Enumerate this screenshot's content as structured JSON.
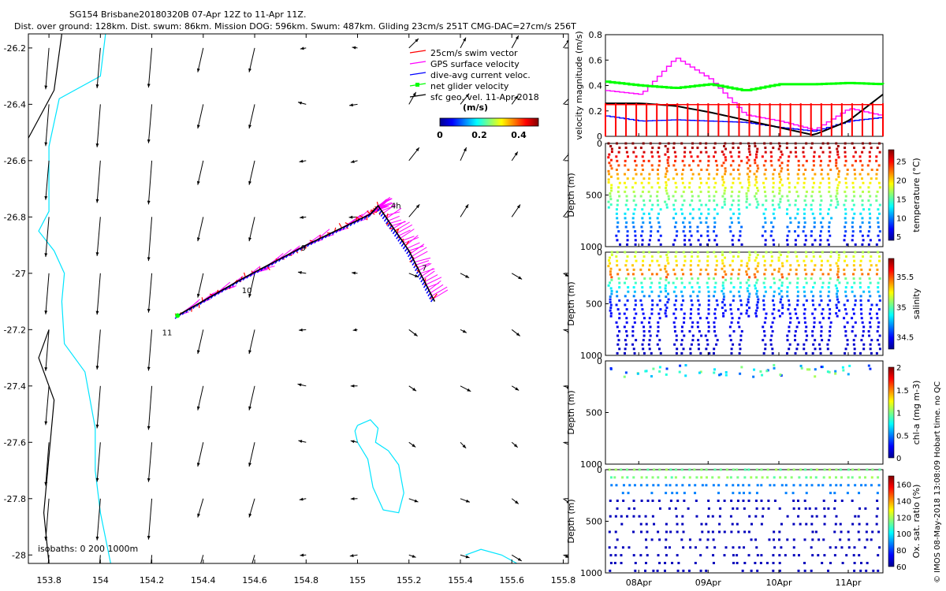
{
  "header": {
    "line1": "SG154 Brisbane20180320B 07-Apr 12Z to 11-Apr 11Z.",
    "line2": "Dist. over ground: 128km. Dist. swum: 86km. Mission DOG: 596km. Swum: 487km. Gliding 23cm/s 251T CMG-DAC=27cm/s 256T"
  },
  "credit": "© IMOS 08-May-2018 13:08:09 Hobart time. no QC",
  "colors": {
    "swim": "#ff0000",
    "gps": "#ff00ff",
    "dac": "#0000ff",
    "net": "#00ff00",
    "sfc": "#000000",
    "isobath200": "#00e5ff",
    "isobath1000": "#000000"
  },
  "map": {
    "x_ticks": [
      "153.8",
      "154",
      "154.2",
      "154.4",
      "154.6",
      "154.8",
      "155",
      "155.2",
      "155.4",
      "155.6",
      "155.8"
    ],
    "y_ticks": [
      "-26.2",
      "-26.4",
      "-26.6",
      "-26.8",
      "-27",
      "-27.2",
      "-27.4",
      "-27.6",
      "-27.8",
      "-28"
    ],
    "xlim": [
      153.72,
      155.82
    ],
    "ylim": [
      -28.03,
      -26.15
    ],
    "day_labels": [
      "4h",
      "7",
      "9",
      "10",
      "11"
    ],
    "isobath_label": "isobaths: 0   200   1000m",
    "legend": [
      "25cm/s swim vector",
      "GPS surface velocity",
      "dive-avg current veloc.",
      "net glider velocity",
      "sfc geo. vel. 11-Apr-2018"
    ],
    "colorbar": {
      "label": "(m/s)",
      "ticks": [
        "0",
        "0.2",
        "0.4"
      ],
      "range": [
        0,
        0.5
      ]
    }
  },
  "panels": {
    "date_ticks": [
      "08Apr",
      "09Apr",
      "10Apr",
      "11Apr"
    ],
    "velocity": {
      "ylabel": "velocity magnitude (m/s)",
      "ticks": [
        "0",
        "0.2",
        "0.4",
        "0.6",
        "0.8"
      ],
      "ylim": [
        0,
        0.8
      ]
    },
    "temperature": {
      "ylabel": "Depth (m)",
      "cblabel": "temperature (°C)",
      "yticks": [
        "0",
        "500",
        "1000"
      ],
      "cbticks": [
        "5",
        "10",
        "15",
        "20",
        "25"
      ],
      "cbrange": [
        4,
        28
      ]
    },
    "salinity": {
      "ylabel": "Depth (m)",
      "cblabel": "salinity",
      "yticks": [
        "0",
        "500",
        "1000"
      ],
      "cbticks": [
        "34.5",
        "35",
        "35.5"
      ],
      "cbrange": [
        34.3,
        35.8
      ]
    },
    "chla": {
      "ylabel": "Depth (m)",
      "cblabel": "chl-a (mg m-3)",
      "yticks": [
        "0",
        "500",
        "1000"
      ],
      "cbticks": [
        "0",
        "0.5",
        "1",
        "1.5",
        "2"
      ],
      "cbrange": [
        0,
        2
      ]
    },
    "oxygen": {
      "ylabel": "Depth (m)",
      "cblabel": "Ox. sat. ratio (%)",
      "yticks": [
        "0",
        "500",
        "1000"
      ],
      "cbticks": [
        "60",
        "80",
        "100",
        "120",
        "140",
        "160"
      ],
      "cbrange": [
        60,
        170
      ]
    }
  },
  "chart_data": [
    {
      "type": "scatter",
      "title": "SG154 Brisbane20180320B 07-Apr 12Z to 11-Apr 11Z.",
      "xlim": [
        153.72,
        155.82
      ],
      "ylim": [
        -28.03,
        -26.15
      ],
      "series": [
        {
          "name": "glider track",
          "x": [
            154.3,
            154.55,
            154.8,
            155.05,
            155.08,
            155.2,
            155.3
          ],
          "y": [
            -27.15,
            -27.02,
            -26.9,
            -26.79,
            -26.76,
            -26.92,
            -27.1
          ]
        }
      ],
      "annotations": [
        "4h",
        "7",
        "9",
        "10",
        "11"
      ]
    },
    {
      "type": "line",
      "ylabel": "velocity magnitude (m/s)",
      "ylim": [
        0,
        0.8
      ],
      "x": [
        "07Apr12",
        "08Apr00",
        "08Apr12",
        "09Apr00",
        "09Apr12",
        "10Apr00",
        "10Apr12",
        "11Apr00",
        "11Apr11"
      ],
      "series": [
        {
          "name": "GPS surface velocity",
          "values": [
            0.36,
            0.33,
            0.62,
            0.45,
            0.17,
            0.12,
            0.05,
            0.22,
            0.16
          ]
        },
        {
          "name": "dive-avg current veloc.",
          "values": [
            0.16,
            0.12,
            0.13,
            0.12,
            0.11,
            0.07,
            0.04,
            0.12,
            0.15
          ]
        },
        {
          "name": "net glider velocity",
          "values": [
            0.43,
            0.4,
            0.38,
            0.41,
            0.36,
            0.41,
            0.41,
            0.42,
            0.41
          ]
        },
        {
          "name": "sfc geo. vel. 11-Apr-2018",
          "values": [
            0.26,
            0.26,
            0.24,
            0.19,
            0.13,
            0.07,
            0.01,
            0.12,
            0.33
          ]
        }
      ]
    }
  ]
}
